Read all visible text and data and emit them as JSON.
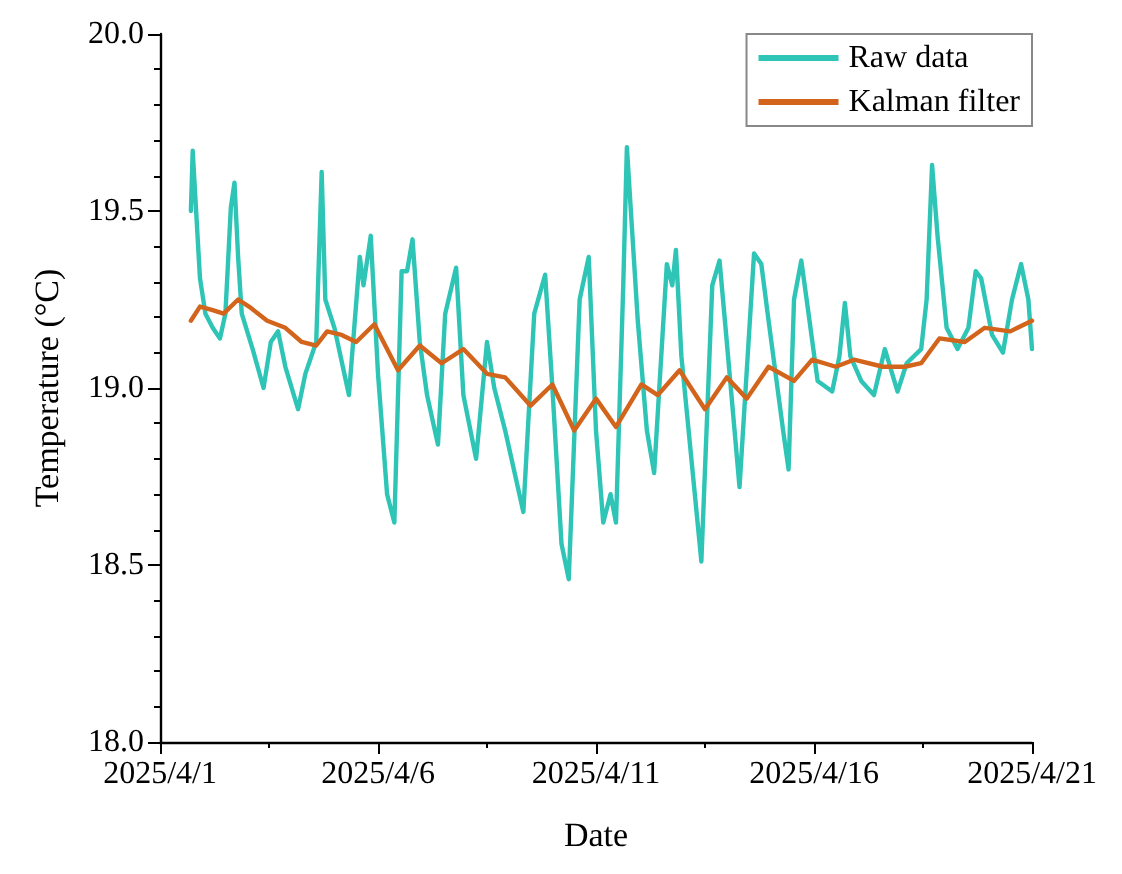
{
  "chart_data": {
    "type": "line",
    "xlabel": "Date",
    "ylabel": "Temperature (°C)",
    "xlim": [
      "2025-04-01",
      "2025-04-21"
    ],
    "xticks": [
      {
        "value": "2025-04-01",
        "label": "2025/4/1"
      },
      {
        "value": "2025-04-03T12:00",
        "label": null
      },
      {
        "value": "2025-04-06",
        "label": "2025/4/6"
      },
      {
        "value": "2025-04-08T12:00",
        "label": null
      },
      {
        "value": "2025-04-11",
        "label": "2025/4/11"
      },
      {
        "value": "2025-04-13T12:00",
        "label": null
      },
      {
        "value": "2025-04-16",
        "label": "2025/4/16"
      },
      {
        "value": "2025-04-18T12:00",
        "label": null
      },
      {
        "value": "2025-04-21",
        "label": "2025/4/21"
      }
    ],
    "ylim": [
      18,
      20
    ],
    "yticks": [
      {
        "value": 18,
        "label": "18.0"
      },
      {
        "value": 18.1,
        "label": null
      },
      {
        "value": 18.2,
        "label": null
      },
      {
        "value": 18.3,
        "label": null
      },
      {
        "value": 18.4,
        "label": null
      },
      {
        "value": 18.5,
        "label": "18.5"
      },
      {
        "value": 18.6,
        "label": null
      },
      {
        "value": 18.7,
        "label": null
      },
      {
        "value": 18.8,
        "label": null
      },
      {
        "value": 18.9,
        "label": null
      },
      {
        "value": 19,
        "label": "19.0"
      },
      {
        "value": 19.1,
        "label": null
      },
      {
        "value": 19.2,
        "label": null
      },
      {
        "value": 19.3,
        "label": null
      },
      {
        "value": 19.4,
        "label": null
      },
      {
        "value": 19.5,
        "label": "19.5"
      },
      {
        "value": 19.6,
        "label": null
      },
      {
        "value": 19.7,
        "label": null
      },
      {
        "value": 19.8,
        "label": null
      },
      {
        "value": 19.9,
        "label": null
      },
      {
        "value": 20,
        "label": "20.0"
      }
    ],
    "grid": false,
    "legend": "top right",
    "marker": "none",
    "line_style": "solid",
    "series": [
      {
        "name": "Raw data",
        "color": "#2ec4b6",
        "x": [
          "2025-04-01T17:00",
          "2025-04-01T18:00",
          "2025-04-01T20:00",
          "2025-04-01T22:00",
          "2025-04-02T01:00",
          "2025-04-02T05:00",
          "2025-04-02T09:00",
          "2025-04-02T12:00",
          "2025-04-02T15:00",
          "2025-04-02T17:00",
          "2025-04-02T19:00",
          "2025-04-02T21:00",
          "2025-04-03T03:00",
          "2025-04-03T09:00",
          "2025-04-03T13:00",
          "2025-04-03T17:00",
          "2025-04-03T21:00",
          "2025-04-04T04:00",
          "2025-04-04T08:00",
          "2025-04-04T14:00",
          "2025-04-04T17:00",
          "2025-04-04T19:00",
          "2025-04-05T00:00",
          "2025-04-05T08:00",
          "2025-04-05T14:00",
          "2025-04-05T16:00",
          "2025-04-05T20:00",
          "2025-04-06T00:00",
          "2025-04-06T05:00",
          "2025-04-06T09:00",
          "2025-04-06T13:00",
          "2025-04-06T16:00",
          "2025-04-06T19:00",
          "2025-04-06T23:00",
          "2025-04-07T03:00",
          "2025-04-07T09:00",
          "2025-04-07T13:00",
          "2025-04-07T19:00",
          "2025-04-07T23:00",
          "2025-04-08T06:00",
          "2025-04-08T12:00",
          "2025-04-08T16:00",
          "2025-04-08T22:00",
          "2025-04-09T08:00",
          "2025-04-09T14:00",
          "2025-04-09T20:00",
          "2025-04-10T00:00",
          "2025-04-10T05:00",
          "2025-04-10T09:00",
          "2025-04-10T15:00",
          "2025-04-10T20:00",
          "2025-04-11T00:00",
          "2025-04-11T04:00",
          "2025-04-11T08:00",
          "2025-04-11T11:00",
          "2025-04-11T15:00",
          "2025-04-11T17:00",
          "2025-04-11T23:00",
          "2025-04-12T04:00",
          "2025-04-12T08:00",
          "2025-04-12T15:00",
          "2025-04-12T18:00",
          "2025-04-12T20:00",
          "2025-04-12T23:00",
          "2025-04-13T10:00",
          "2025-04-13T16:00",
          "2025-04-13T20:00",
          "2025-04-14T00:00",
          "2025-04-14T07:00",
          "2025-04-14T15:00",
          "2025-04-14T19:00",
          "2025-04-14T23:00",
          "2025-04-15T07:00",
          "2025-04-15T10:00",
          "2025-04-15T13:00",
          "2025-04-15T17:00",
          "2025-04-15T21:00",
          "2025-04-16T02:00",
          "2025-04-16T10:00",
          "2025-04-16T14:00",
          "2025-04-16T17:00",
          "2025-04-16T20:00",
          "2025-04-17T02:00",
          "2025-04-17T09:00",
          "2025-04-17T15:00",
          "2025-04-17T22:00",
          "2025-04-18T03:00",
          "2025-04-18T11:00",
          "2025-04-18T14:00",
          "2025-04-18T17:00",
          "2025-04-18T20:00",
          "2025-04-19T01:00",
          "2025-04-19T07:00",
          "2025-04-19T13:00",
          "2025-04-19T17:00",
          "2025-04-19T20:00",
          "2025-04-20T02:00",
          "2025-04-20T08:00",
          "2025-04-20T13:00",
          "2025-04-20T18:00",
          "2025-04-20T22:00",
          "2025-04-21T00:00"
        ],
        "values": [
          19.5,
          19.67,
          19.49,
          19.31,
          19.21,
          19.17,
          19.14,
          19.21,
          19.51,
          19.58,
          19.37,
          19.21,
          19.11,
          19.0,
          19.13,
          19.16,
          19.06,
          18.94,
          19.04,
          19.13,
          19.61,
          19.25,
          19.17,
          18.98,
          19.37,
          19.29,
          19.43,
          19.04,
          18.7,
          18.62,
          19.33,
          19.33,
          19.42,
          19.13,
          18.98,
          18.84,
          19.21,
          19.34,
          18.98,
          18.8,
          19.13,
          19.0,
          18.88,
          18.65,
          19.21,
          19.32,
          19.0,
          18.56,
          18.46,
          19.25,
          19.37,
          18.88,
          18.62,
          18.7,
          18.62,
          19.29,
          19.68,
          19.19,
          18.88,
          18.76,
          19.35,
          19.29,
          19.39,
          19.09,
          18.51,
          19.29,
          19.36,
          19.13,
          18.72,
          19.38,
          19.35,
          19.19,
          18.88,
          18.77,
          19.25,
          19.36,
          19.21,
          19.02,
          18.99,
          19.09,
          19.24,
          19.09,
          19.02,
          18.98,
          19.11,
          18.99,
          19.07,
          19.11,
          19.25,
          19.63,
          19.43,
          19.17,
          19.11,
          19.17,
          19.33,
          19.31,
          19.15,
          19.1,
          19.25,
          19.35,
          19.25,
          19.11
        ]
      },
      {
        "name": "Kalman filter",
        "color": "#d2641c",
        "x": [
          "2025-04-01T17:00",
          "2025-04-01T22:00",
          "2025-04-02T05:00",
          "2025-04-02T11:00",
          "2025-04-02T19:00",
          "2025-04-03T01:00",
          "2025-04-03T11:00",
          "2025-04-03T21:00",
          "2025-04-04T06:00",
          "2025-04-04T14:00",
          "2025-04-04T20:00",
          "2025-04-05T04:00",
          "2025-04-05T12:00",
          "2025-04-05T22:00",
          "2025-04-06T03:00",
          "2025-04-06T11:00",
          "2025-04-06T23:00",
          "2025-04-07T11:00",
          "2025-04-07T23:00",
          "2025-04-08T12:00",
          "2025-04-08T22:00",
          "2025-04-09T12:00",
          "2025-04-10T00:00",
          "2025-04-10T12:00",
          "2025-04-11T00:00",
          "2025-04-11T11:00",
          "2025-04-12T01:00",
          "2025-04-12T10:00",
          "2025-04-12T22:00",
          "2025-04-13T12:00",
          "2025-04-14T00:00",
          "2025-04-14T11:00",
          "2025-04-14T23:00",
          "2025-04-15T13:00",
          "2025-04-15T23:00",
          "2025-04-16T12:00",
          "2025-04-16T22:00",
          "2025-04-17T14:00",
          "2025-04-18T02:00",
          "2025-04-18T11:00",
          "2025-04-18T21:00",
          "2025-04-19T11:00",
          "2025-04-19T22:00",
          "2025-04-20T12:00",
          "2025-04-21T00:00"
        ],
        "values": [
          19.19,
          19.23,
          19.22,
          19.21,
          19.25,
          19.23,
          19.19,
          19.17,
          19.13,
          19.12,
          19.16,
          19.15,
          19.13,
          19.18,
          19.13,
          19.05,
          19.12,
          19.07,
          19.11,
          19.04,
          19.03,
          18.95,
          19.01,
          18.88,
          18.97,
          18.89,
          19.01,
          18.98,
          19.05,
          18.94,
          19.03,
          18.97,
          19.06,
          19.02,
          19.08,
          19.06,
          19.08,
          19.06,
          19.06,
          19.07,
          19.14,
          19.13,
          19.17,
          19.16,
          19.19
        ]
      }
    ]
  }
}
